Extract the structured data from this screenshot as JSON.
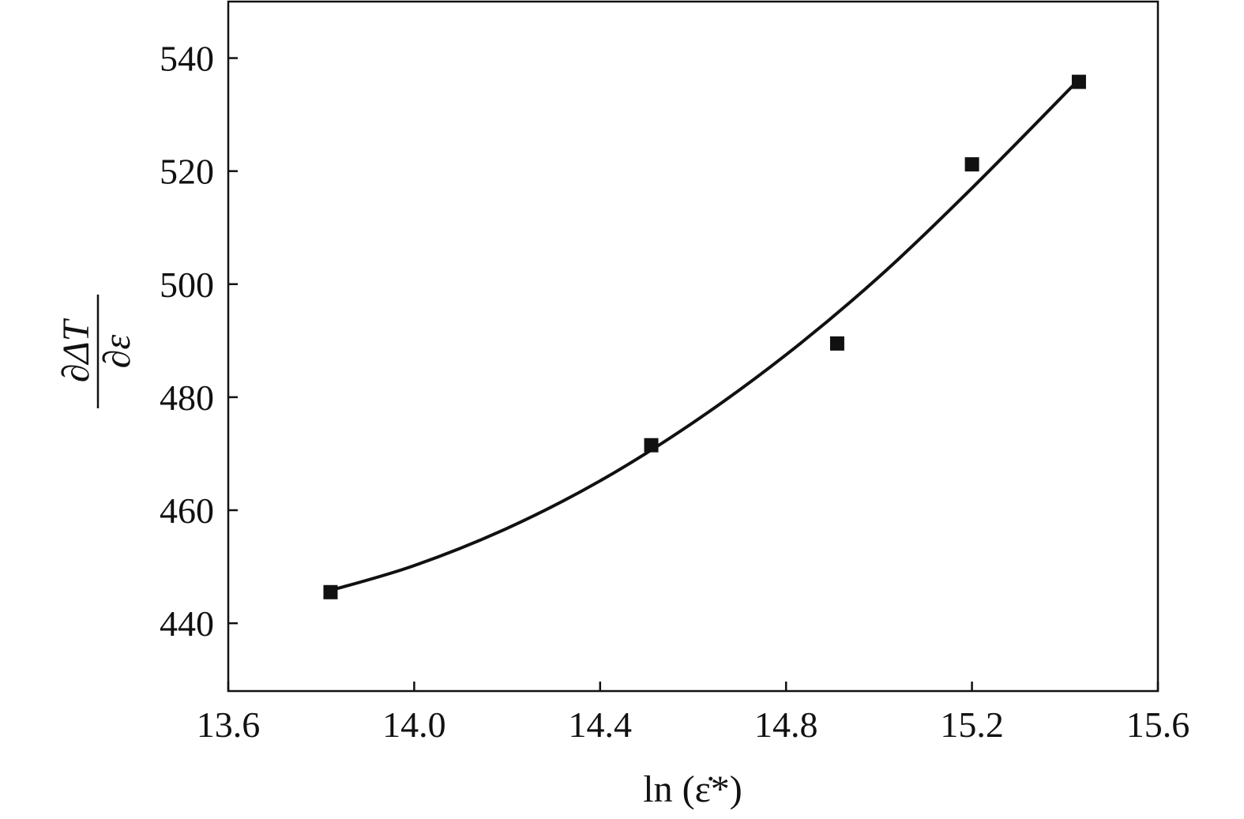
{
  "chart_data": {
    "type": "scatter",
    "xlabel": "ln (ε̇*)",
    "ylabel": {
      "numerator": "∂ΔT",
      "denominator": "∂ε"
    },
    "xlim": [
      13.6,
      15.6
    ],
    "ylim": [
      428,
      550
    ],
    "xticks": [
      13.6,
      14.0,
      14.4,
      14.8,
      15.2,
      15.6
    ],
    "xtick_labels": [
      "13.6",
      "14.0",
      "14.4",
      "14.8",
      "15.2",
      "15.6"
    ],
    "yticks": [
      440,
      460,
      480,
      500,
      520,
      540
    ],
    "ytick_labels": [
      "440",
      "460",
      "480",
      "500",
      "520",
      "540"
    ],
    "grid": false,
    "series": [
      {
        "x": [
          13.82,
          14.51,
          14.91,
          15.2,
          15.43
        ],
        "y": [
          445.5,
          471.5,
          489.5,
          521.2,
          535.8
        ],
        "marker": "square",
        "color": "#111111"
      }
    ],
    "fit_curve": {
      "type": "quadratic",
      "x": [
        13.82,
        14.0,
        14.2,
        14.4,
        14.6,
        14.8,
        15.0,
        15.2,
        15.43
      ],
      "y": [
        445.8,
        450.2,
        456.8,
        465.2,
        475.5,
        487.5,
        501.3,
        517.0,
        536.2
      ],
      "color": "#111111"
    }
  }
}
